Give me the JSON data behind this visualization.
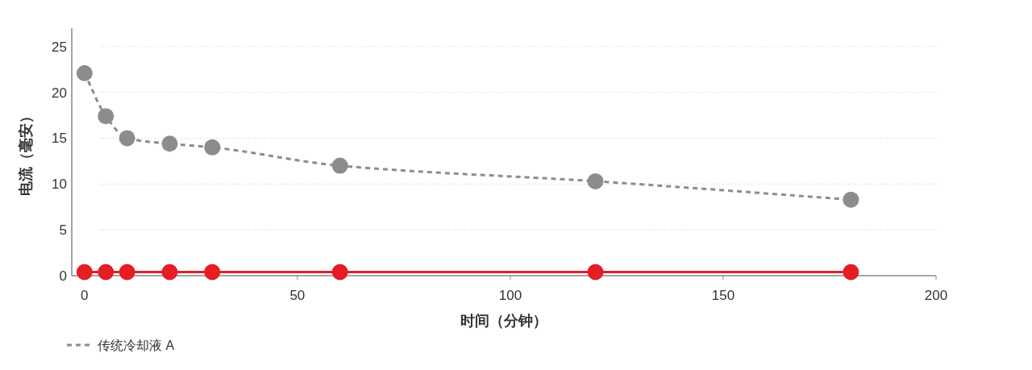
{
  "chart_data": {
    "type": "line",
    "xlabel": "时间（分钟）",
    "ylabel": "电流（毫安）",
    "x": [
      0,
      5,
      10,
      20,
      30,
      60,
      120,
      180
    ],
    "series": [
      {
        "name": "传统冷却液 A",
        "color": "#8c8c8e",
        "line_style": "dashed",
        "values": [
          22.1,
          17.4,
          15.0,
          14.4,
          14.0,
          12.0,
          10.3,
          8.3
        ]
      },
      {
        "color": "#e31e25",
        "line_style": "solid",
        "values": [
          0.4,
          0.4,
          0.4,
          0.4,
          0.4,
          0.4,
          0.4,
          0.4
        ]
      }
    ],
    "xlim": [
      -3,
      200
    ],
    "ylim": [
      0,
      27
    ],
    "xticks": [
      0,
      50,
      100,
      150,
      200
    ],
    "yticks": [
      0,
      5,
      10,
      15,
      20,
      25
    ],
    "grid": "y",
    "legend": "bottom left",
    "marker": "circle"
  }
}
